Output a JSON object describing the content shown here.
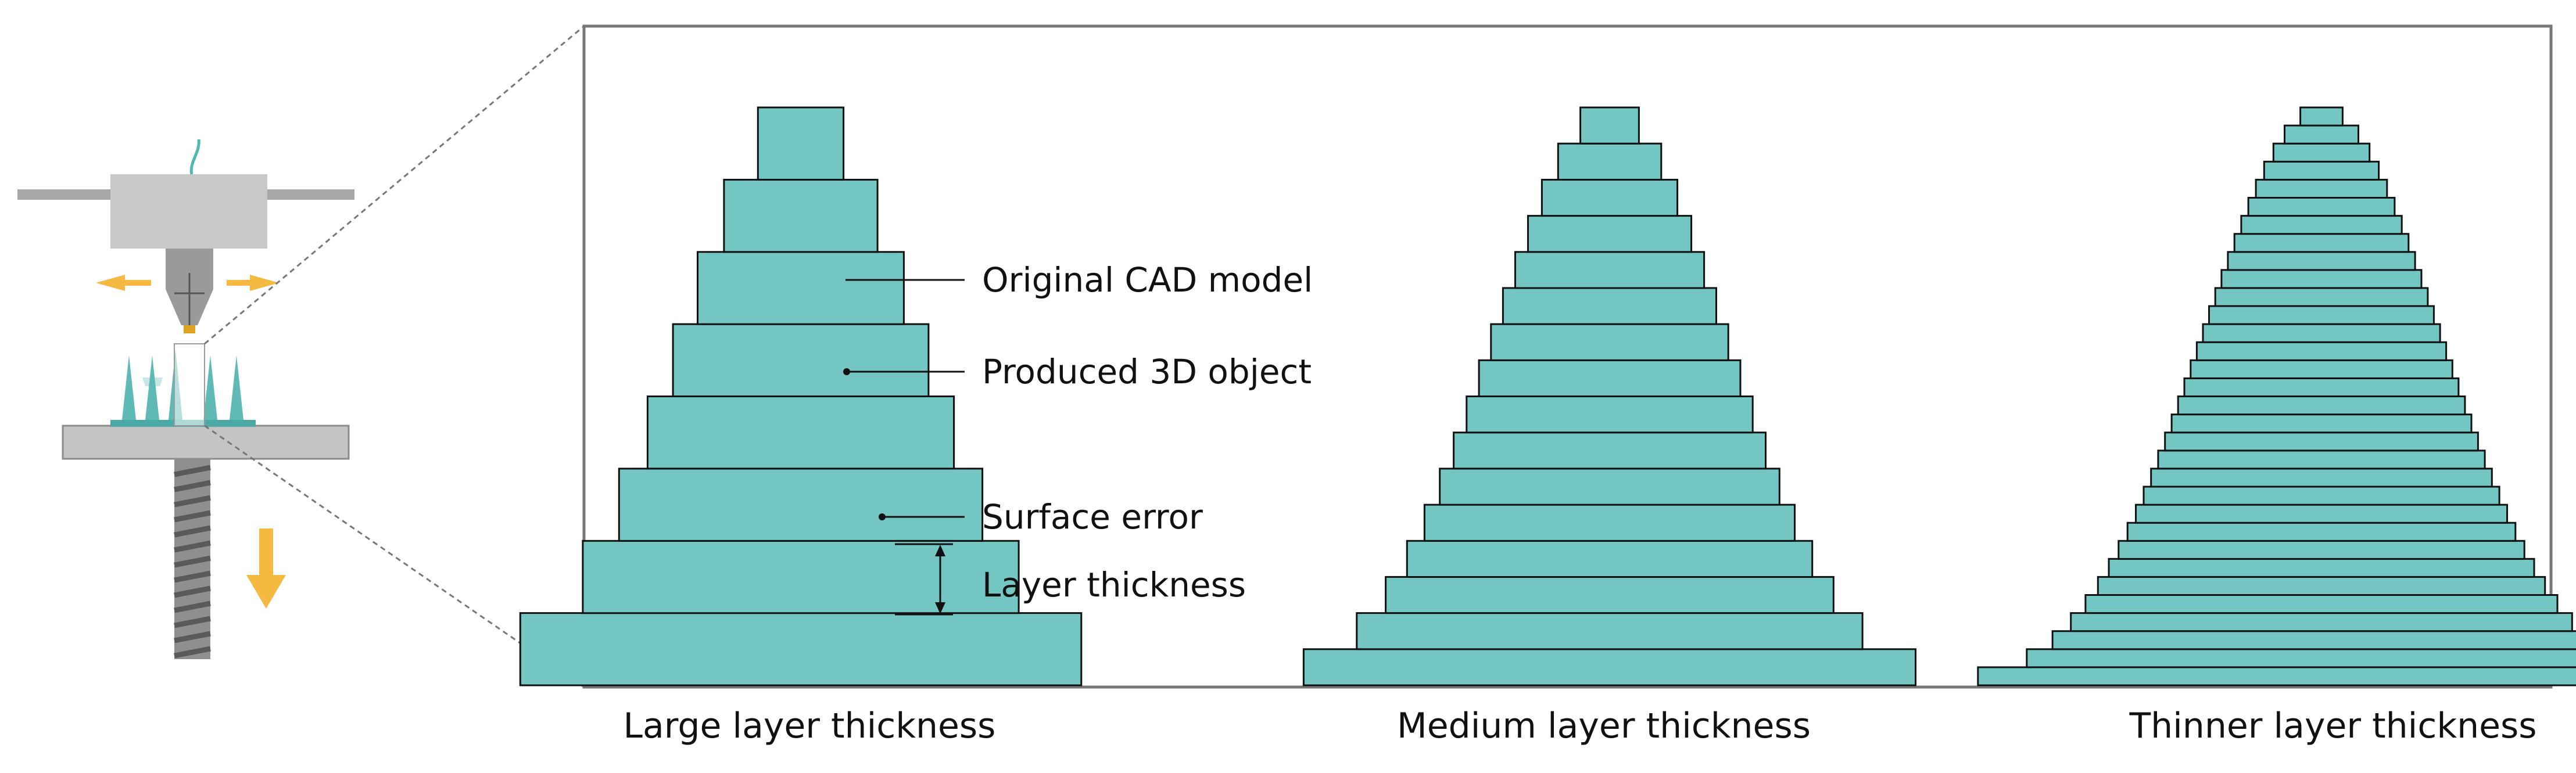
{
  "colors": {
    "layer_fill": "#74c6c2",
    "layer_stroke": "#111111",
    "cad_curve": "#e23b1e",
    "printer_gray": "#c8c8c8",
    "printer_dark": "#8c8c8c",
    "arrow_orange": "#f5b942",
    "nozzle_tip": "#e0a020",
    "filament": "#4fb8b3",
    "frame": "#777777"
  },
  "annotations": {
    "original_cad_model": "Original CAD model",
    "produced_3d_object": "Produced 3D object",
    "surface_error": "Surface error",
    "layer_thickness": "Layer thickness"
  },
  "panels": [
    {
      "caption": "Large layer thickness",
      "layer_count": 8
    },
    {
      "caption": "Medium layer thickness",
      "layer_count": 16
    },
    {
      "caption": "Thinner layer thickness",
      "layer_count": 32
    }
  ],
  "icons": {
    "printer": "3d-printer-icon",
    "move_arrows": "horizontal-arrows-icon",
    "down_arrow": "down-arrow-icon"
  }
}
